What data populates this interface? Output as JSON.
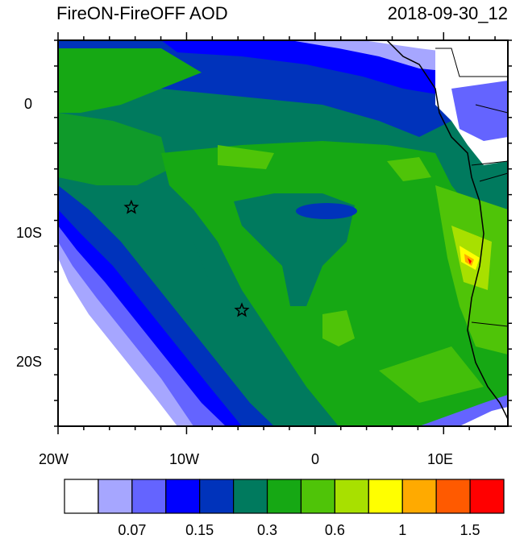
{
  "title": "FireON-FireOFF AOD",
  "timestamp": "2018-09-30_12",
  "axes": {
    "x_ticks": [
      "20W",
      "10W",
      "0",
      "10E"
    ],
    "y_ticks": [
      "0",
      "10S",
      "20S"
    ]
  },
  "colorbar": {
    "colors": [
      "#ffffff",
      "#a6a6ff",
      "#6464ff",
      "#0000ff",
      "#0033bb",
      "#007a5e",
      "#16a814",
      "#4fc408",
      "#a8e000",
      "#ffff00",
      "#ffaa00",
      "#ff5a00",
      "#ff0000"
    ],
    "labels": [
      "0.07",
      "0.15",
      "0.3",
      "0.6",
      "1",
      "1.5"
    ]
  },
  "markers": [
    {
      "lon": -14.3,
      "lat": -8.0,
      "symbol": "star"
    },
    {
      "lon": -5.7,
      "lat": -16.0,
      "symbol": "star"
    }
  ],
  "map_extent": {
    "lon": [
      -20,
      15
    ],
    "lat": [
      -25,
      5
    ]
  }
}
